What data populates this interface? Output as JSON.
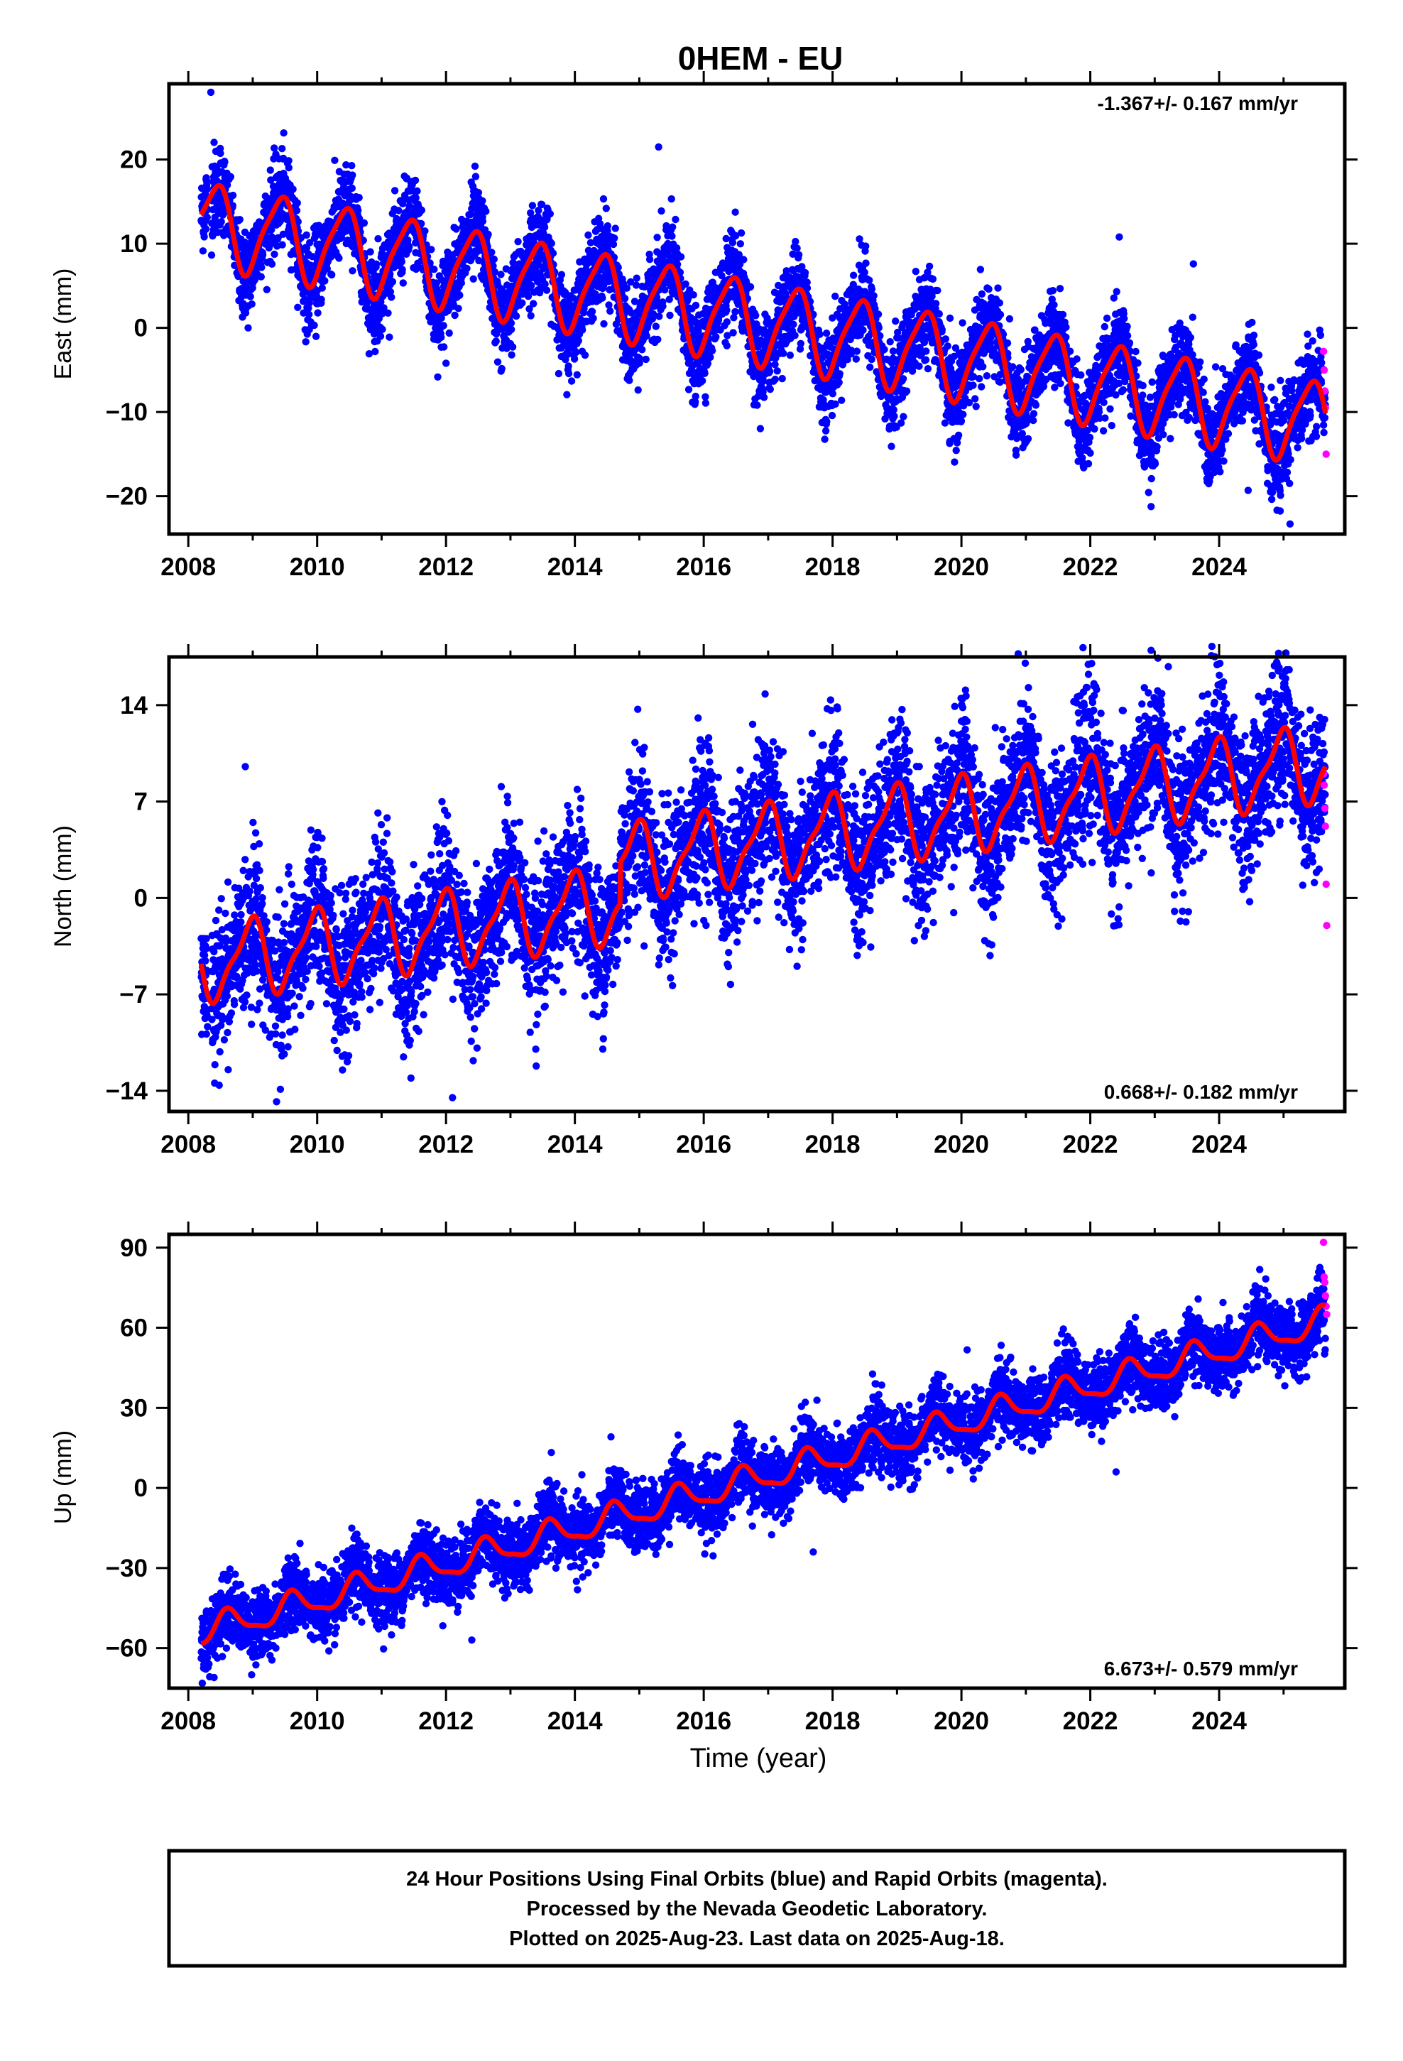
{
  "title": "0HEM - EU",
  "xlabel": "Time (year)",
  "footer": {
    "line1": "24 Hour Positions Using Final Orbits (blue) and Rapid Orbits (magenta).",
    "line2": "Processed by the Nevada Geodetic Laboratory.",
    "line3": "Plotted on 2025-Aug-23. Last data on 2025-Aug-18."
  },
  "colors": {
    "final": "#0000ff",
    "rapid": "#ff00ff",
    "model": "#ff0000",
    "frame": "#000000"
  },
  "chart_data": [
    {
      "type": "scatter",
      "ylabel": "East (mm)",
      "rate_label": "-1.367+/- 0.167 mm/yr",
      "rate_position": "top-right",
      "xlim": [
        2007.7,
        2025.95
      ],
      "ylim": [
        -24.5,
        29
      ],
      "xticks": [
        "2008",
        "2010",
        "2012",
        "2014",
        "2016",
        "2018",
        "2020",
        "2022",
        "2024"
      ],
      "yticks": [
        -20,
        -10,
        0,
        10,
        20
      ],
      "model": {
        "start": 2008.2,
        "end": 2025.65,
        "offset": 12.5,
        "rate": -1.367,
        "amplitude": 4.8,
        "peak_phase": 0.42,
        "harm2": 1.0
      },
      "scatter": {
        "noise": 2.0,
        "season_extra": 0.8
      },
      "rapid": {
        "x": [
          2025.62,
          2025.63,
          2025.64,
          2025.65,
          2025.66
        ],
        "y": [
          -2.8,
          -5.0,
          -7.5,
          -9.5,
          -15.0
        ]
      },
      "outliers": {
        "x": [
          2008.35,
          2012.45,
          2015.3,
          2022.45,
          2023.6,
          2024.45,
          2025.1
        ],
        "y": [
          28.0,
          19.2,
          21.5,
          10.8,
          7.6,
          -19.3,
          -23.3
        ]
      }
    },
    {
      "type": "scatter",
      "ylabel": "North (mm)",
      "rate_label": "0.668+/- 0.182 mm/yr",
      "rate_position": "bottom-right",
      "xlim": [
        2007.7,
        2025.95
      ],
      "ylim": [
        -15.5,
        17.5
      ],
      "xticks": [
        "2008",
        "2010",
        "2012",
        "2014",
        "2016",
        "2018",
        "2020",
        "2022",
        "2024"
      ],
      "yticks": [
        -14,
        -7,
        0,
        7,
        14
      ],
      "model": {
        "start": 2008.2,
        "end": 2025.65,
        "offset": -4.8,
        "rate": 0.668,
        "amplitude": 2.6,
        "peak_phase": 0.95,
        "harm2": 0.8,
        "jump_year": 2014.7,
        "jump": 3.0
      },
      "scatter": {
        "noise": 2.0,
        "season_extra": 0.9
      },
      "rapid": {
        "x": [
          2025.62,
          2025.63,
          2025.64,
          2025.65,
          2025.66,
          2025.67
        ],
        "y": [
          9.0,
          8.2,
          6.5,
          5.2,
          1.0,
          -2.0
        ]
      },
      "outliers": {
        "x": [
          2011.9,
          2012.1,
          2024.9,
          2013.4
        ],
        "y": [
          4.4,
          -14.5,
          17.0,
          -12.2
        ]
      }
    },
    {
      "type": "scatter",
      "ylabel": "Up (mm)",
      "rate_label": "6.673+/- 0.579 mm/yr",
      "rate_position": "bottom-right",
      "xlim": [
        2007.7,
        2025.95
      ],
      "ylim": [
        -75,
        95
      ],
      "xticks": [
        "2008",
        "2010",
        "2012",
        "2014",
        "2016",
        "2018",
        "2020",
        "2022",
        "2024"
      ],
      "yticks": [
        -60,
        -30,
        0,
        30,
        60,
        90
      ],
      "model": {
        "start": 2008.2,
        "end": 2025.65,
        "offset": -54,
        "rate": 6.673,
        "amplitude": 5.0,
        "peak_phase": 0.62,
        "harm2": 1.5
      },
      "scatter": {
        "noise": 5.0,
        "season_extra": 2.0
      },
      "rapid": {
        "x": [
          2025.62,
          2025.63,
          2025.64,
          2025.65,
          2025.66,
          2025.67
        ],
        "y": [
          92,
          79,
          77,
          72,
          68,
          65
        ]
      },
      "outliers": {
        "x": [
          2008.4,
          2012.4,
          2017.7,
          2022.4
        ],
        "y": [
          -71,
          -57,
          -24,
          6
        ]
      }
    }
  ]
}
